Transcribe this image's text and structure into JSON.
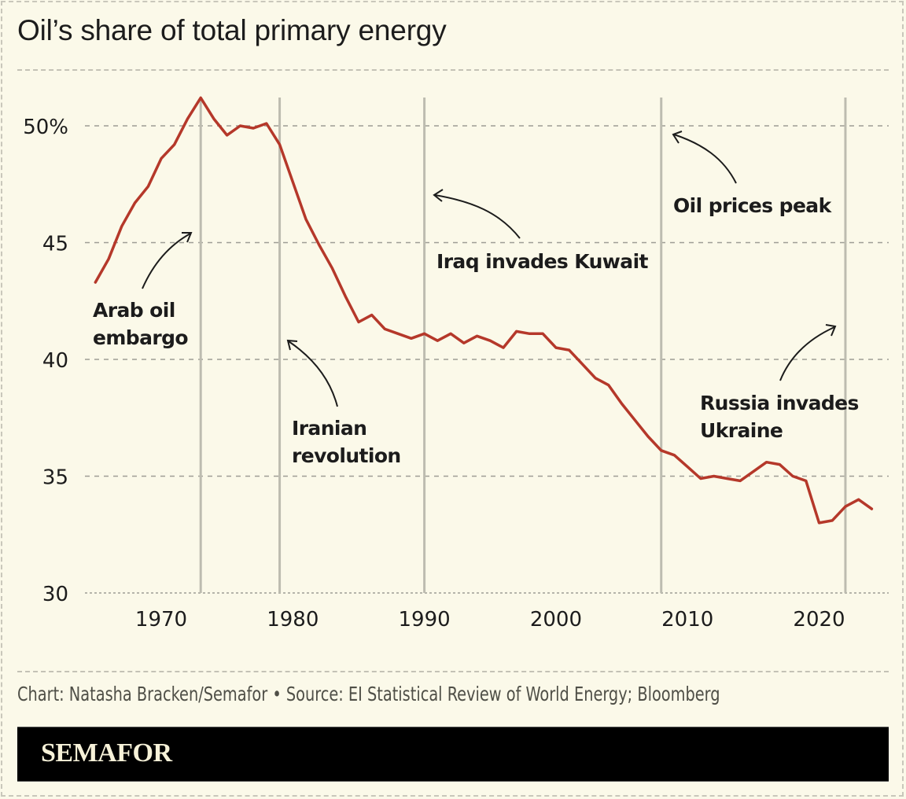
{
  "title": "Oil’s share of total primary energy",
  "source": "Chart: Natasha Bracken/Semafor • Source: EI Statistical Review of World Energy; Bloomberg",
  "brand": "SEMAFOR",
  "colors": {
    "background": "#fbf9e9",
    "line": "#b5382a",
    "event_line": "#bdbcb0",
    "grid": "#9e9d95",
    "text": "#1c1c1c",
    "source_text": "#4f4f47",
    "brand_bar": "#000000",
    "brand_text": "#f6f1d8"
  },
  "chart_data": {
    "type": "line",
    "title": "Oil’s share of total primary energy",
    "xlabel": "",
    "ylabel": "",
    "xlim": [
      1964,
      2025
    ],
    "ylim": [
      30,
      51.5
    ],
    "grid": true,
    "y_ticks": [
      {
        "value": 50,
        "label": "50%"
      },
      {
        "value": 45,
        "label": "45"
      },
      {
        "value": 40,
        "label": "40"
      },
      {
        "value": 35,
        "label": "35"
      },
      {
        "value": 30,
        "label": "30"
      }
    ],
    "x_ticks": [
      {
        "value": 1970,
        "label": "1970"
      },
      {
        "value": 1980,
        "label": "1980"
      },
      {
        "value": 1990,
        "label": "1990"
      },
      {
        "value": 2000,
        "label": "2000"
      },
      {
        "value": 2010,
        "label": "2010"
      },
      {
        "value": 2020,
        "label": "2020"
      }
    ],
    "series": [
      {
        "name": "Oil share of primary energy (%)",
        "x": [
          1965,
          1966,
          1967,
          1968,
          1969,
          1970,
          1971,
          1972,
          1973,
          1974,
          1975,
          1976,
          1977,
          1978,
          1979,
          1980,
          1981,
          1982,
          1983,
          1984,
          1985,
          1986,
          1987,
          1988,
          1989,
          1990,
          1991,
          1992,
          1993,
          1994,
          1995,
          1996,
          1997,
          1998,
          1999,
          2000,
          2001,
          2002,
          2003,
          2004,
          2005,
          2006,
          2007,
          2008,
          2009,
          2010,
          2011,
          2012,
          2013,
          2014,
          2015,
          2016,
          2017,
          2018,
          2019,
          2020,
          2021,
          2022,
          2023,
          2024
        ],
        "values": [
          43.3,
          44.3,
          45.7,
          46.7,
          47.4,
          48.6,
          49.2,
          50.3,
          51.2,
          50.3,
          49.6,
          50.0,
          49.9,
          50.1,
          49.2,
          47.6,
          46.0,
          44.9,
          43.9,
          42.7,
          41.6,
          41.9,
          41.3,
          41.1,
          40.9,
          41.1,
          40.8,
          41.1,
          40.7,
          41.0,
          40.8,
          40.5,
          41.2,
          41.1,
          41.1,
          40.5,
          40.4,
          39.8,
          39.2,
          38.9,
          38.1,
          37.4,
          36.7,
          36.1,
          35.9,
          35.4,
          34.9,
          35.0,
          34.9,
          34.8,
          35.2,
          35.6,
          35.5,
          35.0,
          34.8,
          33.0,
          33.1,
          33.7,
          34.0,
          33.6
        ]
      }
    ],
    "events": [
      {
        "year": 1973,
        "label": [
          "Arab oil",
          "embargo"
        ]
      },
      {
        "year": 1979,
        "label": [
          "Iranian",
          "revolution"
        ]
      },
      {
        "year": 1990,
        "label": [
          "Iraq invades Kuwait"
        ]
      },
      {
        "year": 2008,
        "label": [
          "Oil prices peak"
        ]
      },
      {
        "year": 2022,
        "label": [
          "Russia invades",
          "Ukraine"
        ]
      }
    ]
  }
}
